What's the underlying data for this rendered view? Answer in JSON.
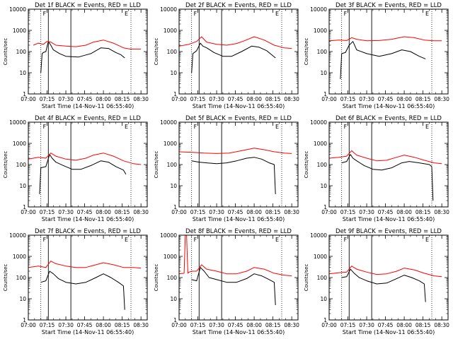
{
  "chart_data": [
    {
      "type": "line",
      "title": "Det 1f BLACK = Events, RED = LLD",
      "xlabel": "Start Time (14-Nov-11 06:55:40)",
      "ylabel": "Counts/sec",
      "xlim": [
        "07:00",
        "08:35"
      ],
      "ylim": [
        1,
        10000
      ],
      "yscale": "log",
      "x_ticks": [
        "07:00",
        "07:15",
        "07:30",
        "07:45",
        "08:00",
        "08:15",
        "08:30"
      ],
      "y_ticks": [
        "1",
        "10",
        "100",
        "1000",
        "10000"
      ],
      "markers": {
        "dotted": [
          "07:10",
          "08:22"
        ],
        "solid": [
          "07:16",
          "07:34"
        ],
        "tick_labels": [
          "F",
          "E"
        ]
      },
      "series": [
        {
          "color": "#000000",
          "x": [
            "07:10",
            "07:11",
            "07:12",
            "07:14",
            "07:16",
            "07:18",
            "07:20",
            "07:25",
            "07:30",
            "07:40",
            "07:50",
            "07:58",
            "08:04",
            "08:10",
            "08:14",
            "08:17"
          ],
          "values": [
            10,
            80,
            90,
            100,
            300,
            200,
            120,
            80,
            60,
            55,
            80,
            150,
            140,
            90,
            70,
            50
          ]
        },
        {
          "color": "#ff0000",
          "x": [
            "07:04",
            "07:08",
            "07:12",
            "07:15",
            "07:18",
            "07:22",
            "07:30",
            "07:38",
            "07:46",
            "07:52",
            "08:00",
            "08:08",
            "08:16",
            "08:22",
            "08:30"
          ],
          "values": [
            200,
            250,
            220,
            300,
            280,
            200,
            180,
            170,
            200,
            280,
            350,
            250,
            150,
            130,
            130
          ]
        }
      ]
    },
    {
      "type": "line",
      "title": "Det 2f BLACK = Events, RED = LLD",
      "xlabel": "Start Time (14-Nov-11 06:55:40)",
      "ylabel": "Counts/sec",
      "xlim": [
        "07:00",
        "08:35"
      ],
      "ylim": [
        1,
        10000
      ],
      "yscale": "log",
      "x_ticks": [
        "07:00",
        "07:15",
        "07:30",
        "07:45",
        "08:00",
        "08:15",
        "08:30"
      ],
      "y_ticks": [
        "1",
        "10",
        "100",
        "1000",
        "10000"
      ],
      "markers": {
        "dotted": [
          "07:10",
          "08:22"
        ],
        "solid": [
          "07:16",
          "07:34"
        ],
        "tick_labels": [
          "F",
          "E"
        ]
      },
      "series": [
        {
          "color": "#000000",
          "x": [
            "07:10",
            "07:11",
            "07:14",
            "07:17",
            "07:19",
            "07:22",
            "07:28",
            "07:35",
            "07:42",
            "07:50",
            "07:58",
            "08:04",
            "08:10",
            "08:14",
            "08:17"
          ],
          "values": [
            10,
            80,
            110,
            250,
            180,
            150,
            90,
            60,
            60,
            100,
            180,
            160,
            110,
            70,
            50
          ]
        },
        {
          "color": "#ff0000",
          "x": [
            "07:00",
            "07:08",
            "07:14",
            "07:18",
            "07:22",
            "07:30",
            "07:38",
            "07:46",
            "07:52",
            "08:00",
            "08:08",
            "08:16",
            "08:24",
            "08:30"
          ],
          "values": [
            180,
            220,
            300,
            500,
            280,
            220,
            200,
            240,
            320,
            500,
            350,
            200,
            150,
            140
          ]
        }
      ]
    },
    {
      "type": "line",
      "title": "Det 3f BLACK = Events, RED = LLD",
      "xlabel": "Start Time (14-Nov-11 06:55:40)",
      "ylabel": "Counts/sec",
      "xlim": [
        "07:00",
        "08:35"
      ],
      "ylim": [
        1,
        10000
      ],
      "yscale": "log",
      "x_ticks": [
        "07:00",
        "07:15",
        "07:30",
        "07:45",
        "08:00",
        "08:15",
        "08:30"
      ],
      "y_ticks": [
        "1",
        "10",
        "100",
        "1000",
        "10000"
      ],
      "markers": {
        "dotted": [
          "07:10",
          "08:22"
        ],
        "solid": [
          "07:16",
          "07:34"
        ],
        "tick_labels": [
          "F",
          "E"
        ]
      },
      "series": [
        {
          "color": "#000000",
          "x": [
            "07:09",
            "07:10",
            "07:13",
            "07:16",
            "07:19",
            "07:22",
            "07:30",
            "07:40",
            "07:50",
            "07:58",
            "08:05",
            "08:12",
            "08:17"
          ],
          "values": [
            5,
            80,
            90,
            200,
            300,
            120,
            80,
            60,
            80,
            120,
            100,
            60,
            45
          ]
        },
        {
          "color": "#ff0000",
          "x": [
            "07:00",
            "07:08",
            "07:14",
            "07:18",
            "07:22",
            "07:30",
            "07:40",
            "07:50",
            "08:00",
            "08:08",
            "08:16",
            "08:24",
            "08:30"
          ],
          "values": [
            320,
            350,
            330,
            450,
            380,
            320,
            330,
            380,
            500,
            450,
            350,
            320,
            320
          ]
        }
      ]
    },
    {
      "type": "line",
      "title": "Det 4f BLACK = Events, RED = LLD",
      "xlabel": "Start Time (14-Nov-11 06:55:40)",
      "ylabel": "Counts/sec",
      "xlim": [
        "07:00",
        "08:35"
      ],
      "ylim": [
        1,
        10000
      ],
      "yscale": "log",
      "x_ticks": [
        "07:00",
        "07:15",
        "07:30",
        "07:45",
        "08:00",
        "08:15",
        "08:30"
      ],
      "y_ticks": [
        "1",
        "10",
        "100",
        "1000",
        "10000"
      ],
      "markers": {
        "dotted": [
          "07:10",
          "08:22"
        ],
        "solid": [
          "07:16",
          "07:34"
        ],
        "tick_labels": [
          "F",
          "E"
        ]
      },
      "series": [
        {
          "color": "#000000",
          "x": [
            "07:09",
            "07:10",
            "07:14",
            "07:17",
            "07:19",
            "07:22",
            "07:28",
            "07:35",
            "07:42",
            "07:50",
            "07:58",
            "08:04",
            "08:10",
            "08:16",
            "08:18"
          ],
          "values": [
            4,
            70,
            80,
            300,
            200,
            130,
            90,
            60,
            60,
            90,
            150,
            130,
            80,
            55,
            35
          ]
        },
        {
          "color": "#ff0000",
          "x": [
            "07:00",
            "07:08",
            "07:14",
            "07:18",
            "07:22",
            "07:30",
            "07:38",
            "07:46",
            "07:52",
            "08:00",
            "08:08",
            "08:16",
            "08:24",
            "08:30"
          ],
          "values": [
            180,
            220,
            200,
            350,
            250,
            180,
            160,
            200,
            280,
            350,
            250,
            150,
            110,
            100
          ]
        }
      ]
    },
    {
      "type": "line",
      "title": "Det 5f BLACK = Events, RED = LLD",
      "xlabel": "Start Time (14-Nov-11 06:55:40)",
      "ylabel": "Counts/sec",
      "xlim": [
        "07:00",
        "08:35"
      ],
      "ylim": [
        1,
        10000
      ],
      "yscale": "log",
      "x_ticks": [
        "07:00",
        "07:15",
        "07:30",
        "07:45",
        "08:00",
        "08:15",
        "08:30"
      ],
      "y_ticks": [
        "1",
        "10",
        "100",
        "1000",
        "10000"
      ],
      "markers": {
        "dotted": [
          "07:10",
          "08:22"
        ],
        "solid": [
          "07:16",
          "07:34"
        ],
        "tick_labels": [
          "F",
          "E"
        ]
      },
      "series": [
        {
          "color": "#000000",
          "x": [
            "07:10",
            "07:16",
            "07:22",
            "07:30",
            "07:38",
            "07:46",
            "07:54",
            "08:00",
            "08:06",
            "08:12",
            "08:16",
            "08:17"
          ],
          "values": [
            150,
            130,
            120,
            110,
            120,
            150,
            200,
            220,
            180,
            120,
            100,
            4
          ]
        },
        {
          "color": "#ff0000",
          "x": [
            "07:00",
            "07:10",
            "07:20",
            "07:30",
            "07:40",
            "07:50",
            "08:00",
            "08:08",
            "08:16",
            "08:24",
            "08:30"
          ],
          "values": [
            400,
            380,
            350,
            330,
            350,
            450,
            600,
            500,
            400,
            350,
            330
          ]
        }
      ]
    },
    {
      "type": "line",
      "title": "Det 6f BLACK = Events, RED = LLD",
      "xlabel": "Start Time (14-Nov-11 06:55:40)",
      "ylabel": "Counts/sec",
      "xlim": [
        "07:00",
        "08:35"
      ],
      "ylim": [
        1,
        10000
      ],
      "yscale": "log",
      "x_ticks": [
        "07:00",
        "07:15",
        "07:30",
        "07:45",
        "08:00",
        "08:15",
        "08:30"
      ],
      "y_ticks": [
        "1",
        "10",
        "100",
        "1000",
        "10000"
      ],
      "markers": {
        "dotted": [
          "07:10",
          "08:22"
        ],
        "solid": [
          "07:16",
          "07:34"
        ],
        "tick_labels": [
          "F",
          "E"
        ]
      },
      "series": [
        {
          "color": "#000000",
          "x": [
            "07:10",
            "07:14",
            "07:17",
            "07:19",
            "07:22",
            "07:28",
            "07:35",
            "07:42",
            "07:50",
            "07:58",
            "08:04",
            "08:12",
            "08:20",
            "08:22",
            "08:23"
          ],
          "values": [
            120,
            140,
            300,
            200,
            150,
            90,
            60,
            55,
            70,
            120,
            140,
            120,
            100,
            80,
            2
          ]
        },
        {
          "color": "#ff0000",
          "x": [
            "07:00",
            "07:08",
            "07:14",
            "07:18",
            "07:22",
            "07:30",
            "07:38",
            "07:46",
            "07:54",
            "08:00",
            "08:08",
            "08:16",
            "08:24",
            "08:30"
          ],
          "values": [
            200,
            220,
            250,
            450,
            280,
            200,
            150,
            160,
            220,
            280,
            220,
            160,
            120,
            110
          ]
        }
      ]
    },
    {
      "type": "line",
      "title": "Det 7f BLACK = Events, RED = LLD",
      "xlabel": "Start Time (14-Nov-11 06:55:40)",
      "ylabel": "Counts/sec",
      "xlim": [
        "07:00",
        "08:35"
      ],
      "ylim": [
        1,
        10000
      ],
      "yscale": "log",
      "x_ticks": [
        "07:00",
        "07:15",
        "07:30",
        "07:45",
        "08:00",
        "08:15",
        "08:30"
      ],
      "y_ticks": [
        "1",
        "10",
        "100",
        "1000",
        "10000"
      ],
      "markers": {
        "dotted": [
          "07:10",
          "08:22"
        ],
        "solid": [
          "07:16",
          "07:34"
        ],
        "tick_labels": [
          "F",
          "E"
        ]
      },
      "series": [
        {
          "color": "#000000",
          "x": [
            "07:10",
            "07:14",
            "07:17",
            "07:20",
            "07:24",
            "07:30",
            "07:38",
            "07:46",
            "07:54",
            "08:00",
            "08:06",
            "08:12",
            "08:16",
            "08:17"
          ],
          "values": [
            60,
            70,
            200,
            150,
            90,
            60,
            50,
            60,
            100,
            150,
            100,
            60,
            40,
            3
          ]
        },
        {
          "color": "#ff0000",
          "x": [
            "07:00",
            "07:08",
            "07:14",
            "07:18",
            "07:22",
            "07:30",
            "07:38",
            "07:46",
            "07:54",
            "08:00",
            "08:08",
            "08:16",
            "08:24",
            "08:30"
          ],
          "values": [
            300,
            350,
            300,
            600,
            450,
            350,
            300,
            300,
            400,
            500,
            400,
            300,
            300,
            280
          ]
        }
      ]
    },
    {
      "type": "line",
      "title": "Det 8f BLACK = Events, RED = LLD",
      "xlabel": "Start Time (14-Nov-11 06:55:40)",
      "ylabel": "Counts/sec",
      "xlim": [
        "07:00",
        "08:35"
      ],
      "ylim": [
        1,
        10000
      ],
      "yscale": "log",
      "x_ticks": [
        "07:00",
        "07:15",
        "07:30",
        "07:45",
        "08:00",
        "08:15",
        "08:30"
      ],
      "y_ticks": [
        "1",
        "10",
        "100",
        "1000",
        "10000"
      ],
      "markers": {
        "dotted": [
          "07:10",
          "08:22"
        ],
        "solid": [
          "07:16",
          "07:34"
        ],
        "tick_labels": [
          "F",
          "E"
        ]
      },
      "series": [
        {
          "color": "#000000",
          "x": [
            "07:10",
            "07:14",
            "07:17",
            "07:20",
            "07:24",
            "07:30",
            "07:38",
            "07:46",
            "07:54",
            "08:00",
            "08:06",
            "08:12",
            "08:16",
            "08:17"
          ],
          "values": [
            80,
            70,
            300,
            200,
            100,
            80,
            60,
            60,
            90,
            150,
            120,
            80,
            60,
            5
          ]
        },
        {
          "color": "#ff0000",
          "x": [
            "07:00",
            "07:04",
            "07:05",
            "07:06",
            "07:07",
            "07:08",
            "07:10",
            "07:14",
            "07:18",
            "07:22",
            "07:30",
            "07:38",
            "07:46",
            "07:54",
            "08:00",
            "08:08",
            "08:16",
            "08:24",
            "08:30"
          ],
          "values": [
            150,
            160,
            10000,
            10000,
            160,
            180,
            200,
            200,
            400,
            250,
            200,
            150,
            150,
            200,
            300,
            250,
            160,
            130,
            120
          ]
        }
      ]
    },
    {
      "type": "line",
      "title": "Det 9f BLACK = Events, RED = LLD",
      "xlabel": "Start Time (14-Nov-11 06:55:40)",
      "ylabel": "Counts/sec",
      "xlim": [
        "07:00",
        "08:35"
      ],
      "ylim": [
        1,
        10000
      ],
      "yscale": "log",
      "x_ticks": [
        "07:00",
        "07:15",
        "07:30",
        "07:45",
        "08:00",
        "08:15",
        "08:30"
      ],
      "y_ticks": [
        "1",
        "10",
        "100",
        "1000",
        "10000"
      ],
      "markers": {
        "dotted": [
          "07:10",
          "08:22"
        ],
        "solid": [
          "07:16",
          "07:34"
        ],
        "tick_labels": [
          "F",
          "E"
        ]
      },
      "series": [
        {
          "color": "#000000",
          "x": [
            "07:10",
            "07:14",
            "07:17",
            "07:20",
            "07:24",
            "07:30",
            "07:38",
            "07:46",
            "07:54",
            "08:00",
            "08:06",
            "08:12",
            "08:16",
            "08:17"
          ],
          "values": [
            100,
            110,
            250,
            160,
            100,
            70,
            50,
            55,
            90,
            130,
            100,
            70,
            50,
            7
          ]
        },
        {
          "color": "#ff0000",
          "x": [
            "07:00",
            "07:08",
            "07:14",
            "07:18",
            "07:22",
            "07:30",
            "07:38",
            "07:46",
            "07:54",
            "08:00",
            "08:08",
            "08:16",
            "08:24",
            "08:30"
          ],
          "values": [
            150,
            170,
            180,
            350,
            250,
            180,
            140,
            150,
            200,
            280,
            230,
            160,
            120,
            110
          ]
        }
      ]
    }
  ]
}
